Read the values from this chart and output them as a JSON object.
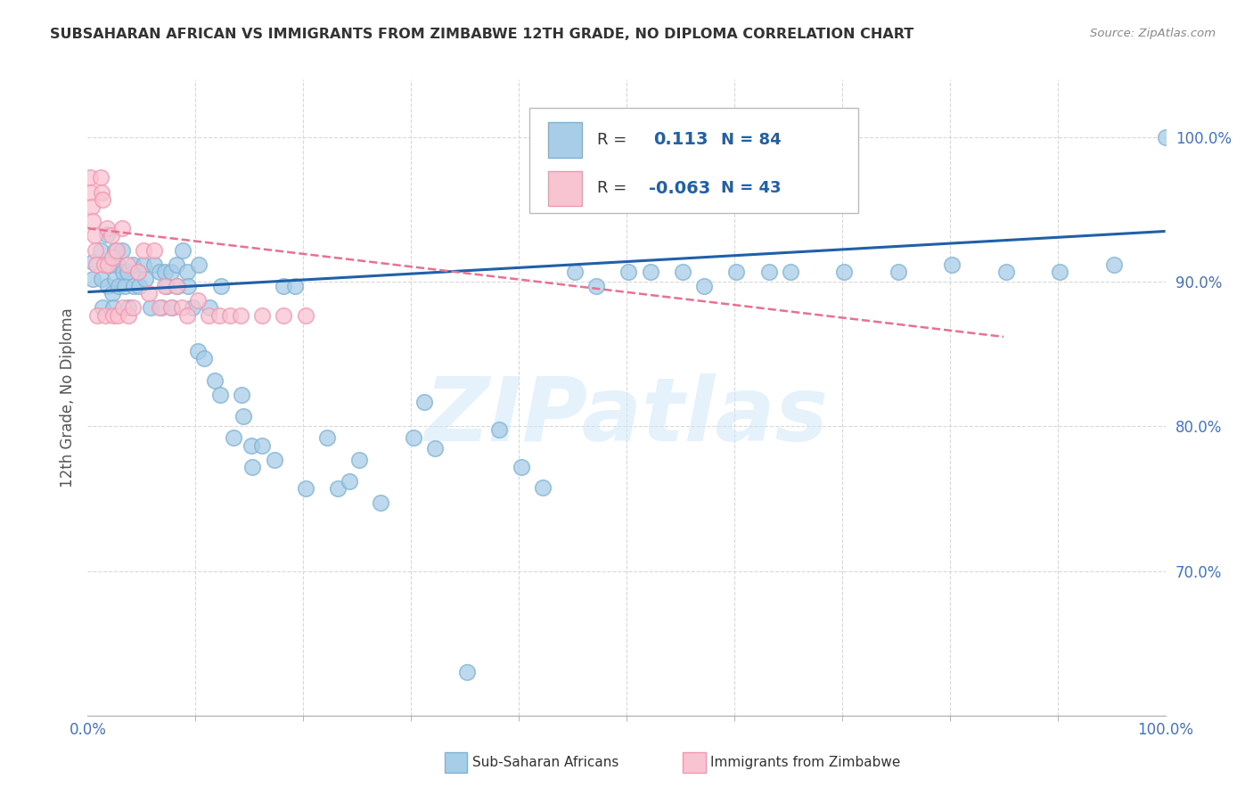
{
  "title": "SUBSAHARAN AFRICAN VS IMMIGRANTS FROM ZIMBABWE 12TH GRADE, NO DIPLOMA CORRELATION CHART",
  "source": "Source: ZipAtlas.com",
  "ylabel": "12th Grade, No Diploma",
  "y_tick_labels": [
    "100.0%",
    "90.0%",
    "80.0%",
    "70.0%"
  ],
  "y_tick_values": [
    1.0,
    0.9,
    0.8,
    0.7
  ],
  "x_tick_labels": [
    "0.0%",
    "100.0%"
  ],
  "x_tick_values": [
    0.0,
    1.0
  ],
  "legend_blue_r": "0.113",
  "legend_blue_n": "84",
  "legend_pink_r": "-0.063",
  "legend_pink_n": "43",
  "legend_blue_label": "Sub-Saharan Africans",
  "legend_pink_label": "Immigrants from Zimbabwe",
  "blue_fill_color": "#a8cde8",
  "blue_edge_color": "#7fb3d3",
  "pink_fill_color": "#f9c4d2",
  "pink_edge_color": "#f097b0",
  "blue_line_color": "#2060a8",
  "pink_line_color": "#e87090",
  "watermark_color": "#d0e8f8",
  "watermark": "ZIPatlas",
  "blue_scatter_x": [
    0.005,
    0.005,
    0.012,
    0.013,
    0.014,
    0.018,
    0.019,
    0.022,
    0.023,
    0.024,
    0.025,
    0.025,
    0.028,
    0.029,
    0.032,
    0.033,
    0.034,
    0.037,
    0.038,
    0.042,
    0.043,
    0.047,
    0.048,
    0.052,
    0.053,
    0.058,
    0.062,
    0.067,
    0.068,
    0.072,
    0.073,
    0.077,
    0.078,
    0.082,
    0.083,
    0.088,
    0.092,
    0.093,
    0.097,
    0.102,
    0.103,
    0.108,
    0.113,
    0.118,
    0.123,
    0.124,
    0.135,
    0.143,
    0.144,
    0.152,
    0.153,
    0.162,
    0.173,
    0.182,
    0.192,
    0.202,
    0.222,
    0.232,
    0.243,
    0.252,
    0.272,
    0.302,
    0.312,
    0.322,
    0.352,
    0.382,
    0.402,
    0.422,
    0.452,
    0.472,
    0.502,
    0.522,
    0.552,
    0.572,
    0.602,
    0.632,
    0.652,
    0.702,
    0.752,
    0.802,
    0.852,
    0.902,
    0.952,
    1.0
  ],
  "blue_scatter_y": [
    0.914,
    0.902,
    0.922,
    0.902,
    0.882,
    0.933,
    0.897,
    0.912,
    0.892,
    0.882,
    0.922,
    0.902,
    0.912,
    0.897,
    0.922,
    0.907,
    0.897,
    0.907,
    0.882,
    0.912,
    0.897,
    0.907,
    0.897,
    0.912,
    0.902,
    0.882,
    0.912,
    0.907,
    0.882,
    0.907,
    0.897,
    0.907,
    0.882,
    0.912,
    0.897,
    0.922,
    0.907,
    0.897,
    0.882,
    0.852,
    0.912,
    0.847,
    0.882,
    0.832,
    0.822,
    0.897,
    0.792,
    0.822,
    0.807,
    0.787,
    0.772,
    0.787,
    0.777,
    0.897,
    0.897,
    0.757,
    0.792,
    0.757,
    0.762,
    0.777,
    0.747,
    0.792,
    0.817,
    0.785,
    0.63,
    0.798,
    0.772,
    0.758,
    0.907,
    0.897,
    0.907,
    0.907,
    0.907,
    0.897,
    0.907,
    0.907,
    0.907,
    0.907,
    0.907,
    0.912,
    0.907,
    0.907,
    0.912,
    1.0
  ],
  "pink_scatter_x": [
    0.002,
    0.003,
    0.004,
    0.005,
    0.006,
    0.007,
    0.008,
    0.009,
    0.012,
    0.013,
    0.014,
    0.015,
    0.016,
    0.018,
    0.019,
    0.022,
    0.023,
    0.024,
    0.027,
    0.028,
    0.032,
    0.033,
    0.037,
    0.038,
    0.042,
    0.047,
    0.052,
    0.057,
    0.062,
    0.067,
    0.072,
    0.077,
    0.082,
    0.087,
    0.092,
    0.102,
    0.112,
    0.122,
    0.132,
    0.142,
    0.162,
    0.182,
    0.202
  ],
  "pink_scatter_y": [
    0.972,
    0.962,
    0.952,
    0.942,
    0.932,
    0.922,
    0.912,
    0.877,
    0.972,
    0.962,
    0.957,
    0.912,
    0.877,
    0.937,
    0.912,
    0.932,
    0.917,
    0.877,
    0.922,
    0.877,
    0.937,
    0.882,
    0.912,
    0.877,
    0.882,
    0.907,
    0.922,
    0.892,
    0.922,
    0.882,
    0.897,
    0.882,
    0.897,
    0.882,
    0.877,
    0.887,
    0.877,
    0.877,
    0.877,
    0.877,
    0.877,
    0.877,
    0.877
  ],
  "blue_line_x": [
    0.0,
    1.0
  ],
  "blue_line_y": [
    0.893,
    0.935
  ],
  "pink_line_x": [
    0.0,
    0.85
  ],
  "pink_line_y": [
    0.937,
    0.862
  ],
  "xlim": [
    0.0,
    1.0
  ],
  "ylim": [
    0.6,
    1.04
  ],
  "grid_color": "#d8d8d8",
  "background_color": "#ffffff",
  "title_color": "#333333",
  "right_tick_color": "#4472c4",
  "left_label_color": "#555555"
}
